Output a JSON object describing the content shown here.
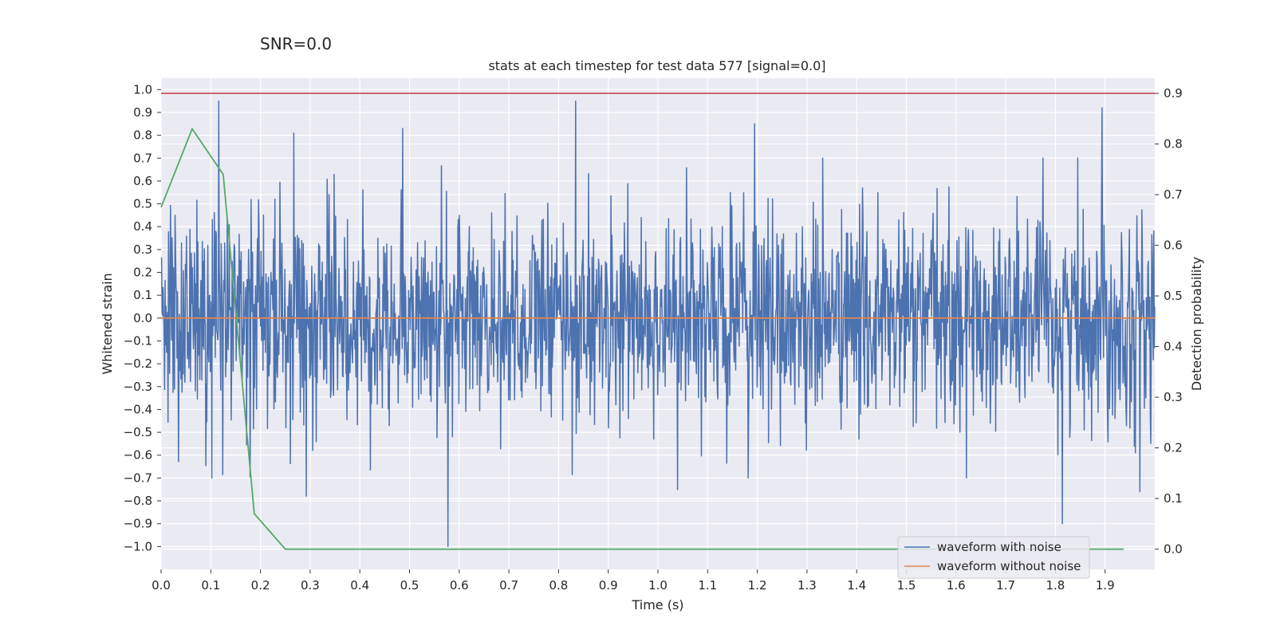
{
  "chart_data": {
    "type": "line",
    "suptitle": "SNR=0.0",
    "title": "stats at each timestep for test data 577 [signal=0.0]",
    "xlabel": "Time (s)",
    "ylabel_left": "Whitened strain",
    "ylabel_right": "Detection probability",
    "xlim": [
      0.0,
      2.0
    ],
    "ylim_left": [
      -1.1,
      1.05
    ],
    "ylim_right": [
      -0.04,
      0.93
    ],
    "x_ticks": [
      "0.0",
      "0.1",
      "0.2",
      "0.3",
      "0.4",
      "0.5",
      "0.6",
      "0.7",
      "0.8",
      "0.9",
      "1.0",
      "1.1",
      "1.2",
      "1.3",
      "1.4",
      "1.5",
      "1.6",
      "1.7",
      "1.8",
      "1.9"
    ],
    "y_left_ticks": [
      "1.0",
      "0.9",
      "0.8",
      "0.7",
      "0.6",
      "0.5",
      "0.4",
      "0.3",
      "0.2",
      "0.1",
      "0.0",
      "−0.1",
      "−0.2",
      "−0.3",
      "−0.4",
      "−0.5",
      "−0.6",
      "−0.7",
      "−0.8",
      "−0.9",
      "−1.0"
    ],
    "y_right_ticks": [
      "0.9",
      "0.8",
      "0.7",
      "0.6",
      "0.5",
      "0.4",
      "0.3",
      "0.2",
      "0.1",
      "0.0"
    ],
    "series": [
      {
        "name": "waveform with noise",
        "axis": "left",
        "color": "#4c72b0",
        "style": "dense noise, approx. zero-mean, peaks near ±0.95",
        "peaks": [
          {
            "x": 0.116,
            "y": 0.95
          },
          {
            "x": 0.834,
            "y": 0.95
          },
          {
            "x": 1.894,
            "y": 0.92
          },
          {
            "x": 1.195,
            "y": 0.85
          },
          {
            "x": 0.486,
            "y": 0.83
          },
          {
            "x": 0.267,
            "y": 0.81
          },
          {
            "x": 0.577,
            "y": -1.0
          },
          {
            "x": 1.814,
            "y": -0.9
          },
          {
            "x": 0.292,
            "y": -0.78
          },
          {
            "x": 1.04,
            "y": -0.75
          },
          {
            "x": 1.97,
            "y": -0.76
          }
        ]
      },
      {
        "name": "waveform without noise",
        "axis": "left",
        "color": "#dd8452",
        "x": [
          0.0,
          2.0
        ],
        "y": [
          0.0,
          0.0
        ]
      },
      {
        "name": "detection probability",
        "axis": "right",
        "color": "#55a868",
        "x": [
          0.0,
          0.0625,
          0.125,
          0.1875,
          0.25,
          0.3125,
          1.9375
        ],
        "y": [
          0.675,
          0.83,
          0.74,
          0.07,
          0.0,
          0.0,
          0.0
        ]
      },
      {
        "name": "threshold",
        "axis": "right",
        "color": "#c44e52",
        "x": [
          0.0,
          2.0
        ],
        "y": [
          0.9,
          0.9
        ]
      }
    ],
    "legend": {
      "position": "lower-right",
      "entries": [
        {
          "label": "waveform with noise",
          "color": "#4c72b0"
        },
        {
          "label": "waveform without noise",
          "color": "#dd8452"
        }
      ]
    }
  }
}
